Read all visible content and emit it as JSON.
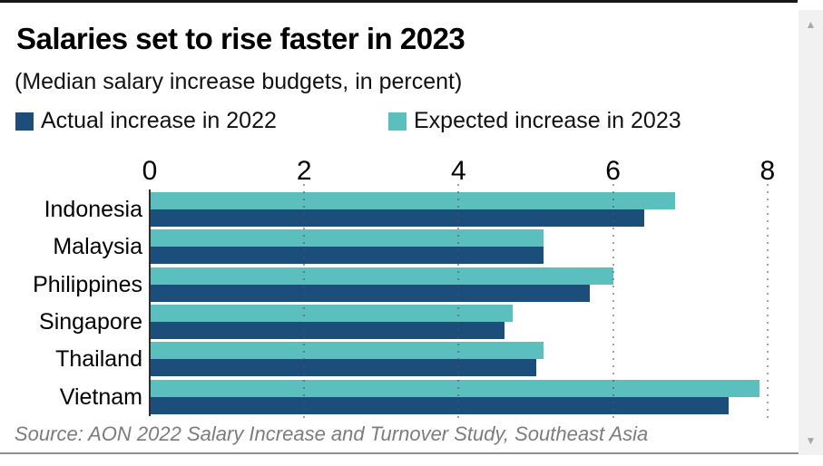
{
  "page": {
    "title": "Salaries set to rise faster in 2023",
    "subtitle": "(Median salary increase budgets, in percent)",
    "source": "Source: AON 2022 Salary Increase and Turnover Study, Southeast Asia"
  },
  "legend": [
    {
      "label": "Actual increase in 2022",
      "color": "#1C4E7C"
    },
    {
      "label": "Expected increase in 2023",
      "color": "#5BC0BD"
    }
  ],
  "colors": {
    "actual_2022": "#1C4E7C",
    "expected_2023": "#5BC0BD",
    "top_rule": "#161616",
    "bottom_rule": "#8f8f8f",
    "source_text": "#7c7c7c",
    "gridline": "#505050",
    "scrollbar_track": "#f1f1f1",
    "scrollbar_arrow": "#a8a8a8"
  },
  "chart_data": {
    "type": "bar",
    "orientation": "horizontal",
    "title": "Salaries set to rise faster in 2023",
    "subtitle": "(Median salary increase budgets, in percent)",
    "categories": [
      "Indonesia",
      "Malaysia",
      "Philippines",
      "Singapore",
      "Thailand",
      "Vietnam"
    ],
    "series": [
      {
        "name": "Expected increase in 2023",
        "color": "#5BC0BD",
        "values": [
          6.8,
          5.1,
          6.0,
          4.7,
          5.1,
          7.9
        ]
      },
      {
        "name": "Actual increase in 2022",
        "color": "#1C4E7C",
        "values": [
          6.4,
          5.1,
          5.7,
          4.6,
          5.0,
          7.5
        ]
      }
    ],
    "x_ticks": [
      0,
      2,
      4,
      6,
      8
    ],
    "xlim": [
      0,
      8
    ],
    "grid": "dotted-vertical",
    "legend_position": "top"
  },
  "scrollbar": {
    "up_glyph": "▲",
    "down_glyph": "▼"
  }
}
